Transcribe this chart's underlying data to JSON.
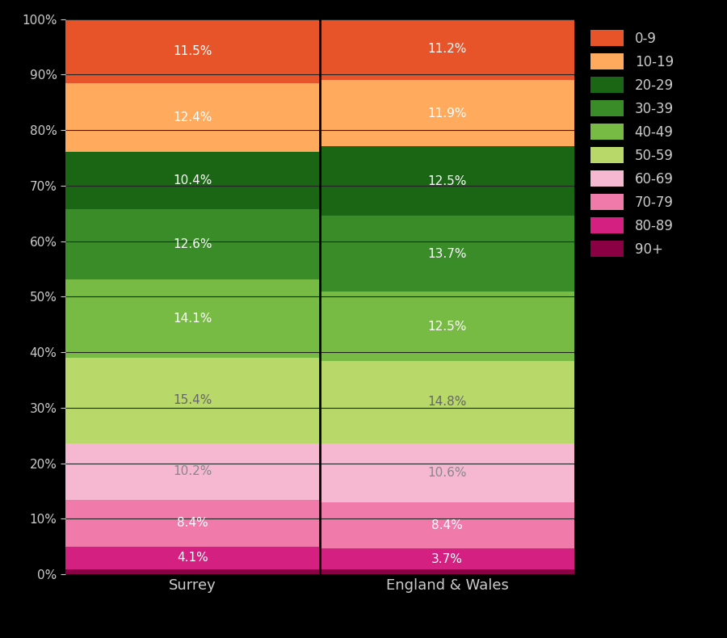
{
  "categories": [
    "Surrey",
    "England & Wales"
  ],
  "age_groups": [
    "90+",
    "80-89",
    "70-79",
    "60-69",
    "50-59",
    "40-49",
    "30-39",
    "20-29",
    "10-19",
    "0-9"
  ],
  "surrey_values": [
    0.9,
    4.1,
    8.4,
    10.2,
    15.4,
    14.1,
    12.6,
    10.4,
    12.4,
    11.5
  ],
  "ew_values": [
    0.9,
    3.7,
    8.4,
    10.6,
    14.8,
    12.5,
    13.7,
    12.5,
    11.9,
    11.2
  ],
  "colors": {
    "0-9": "#E8542A",
    "10-19": "#FFAA5C",
    "20-29": "#1A6614",
    "30-39": "#3A8C28",
    "40-49": "#78BB44",
    "50-59": "#B8D96A",
    "60-69": "#F5B8D0",
    "70-79": "#F07AAA",
    "80-89": "#D42080",
    "90+": "#8B0045"
  },
  "background_color": "#000000",
  "text_color": "#CCCCCC",
  "label_colors": {
    "0-9": "white",
    "10-19": "white",
    "20-29": "white",
    "30-39": "white",
    "40-49": "white",
    "50-59": "#666666",
    "60-69": "#888888",
    "70-79": "white",
    "80-89": "white",
    "90+": "white"
  },
  "surrey_labels": [
    "",
    "4.1%",
    "8.4%",
    "10.2%",
    "15.4%",
    "14.1%",
    "12.6%",
    "10.4%",
    "12.4%",
    "11.5%"
  ],
  "ew_labels": [
    "",
    "3.7%",
    "8.4%",
    "10.6%",
    "14.8%",
    "12.5%",
    "13.7%",
    "12.5%",
    "11.9%",
    "11.2%"
  ],
  "figsize": [
    9.0,
    7.9
  ],
  "dpi": 100
}
